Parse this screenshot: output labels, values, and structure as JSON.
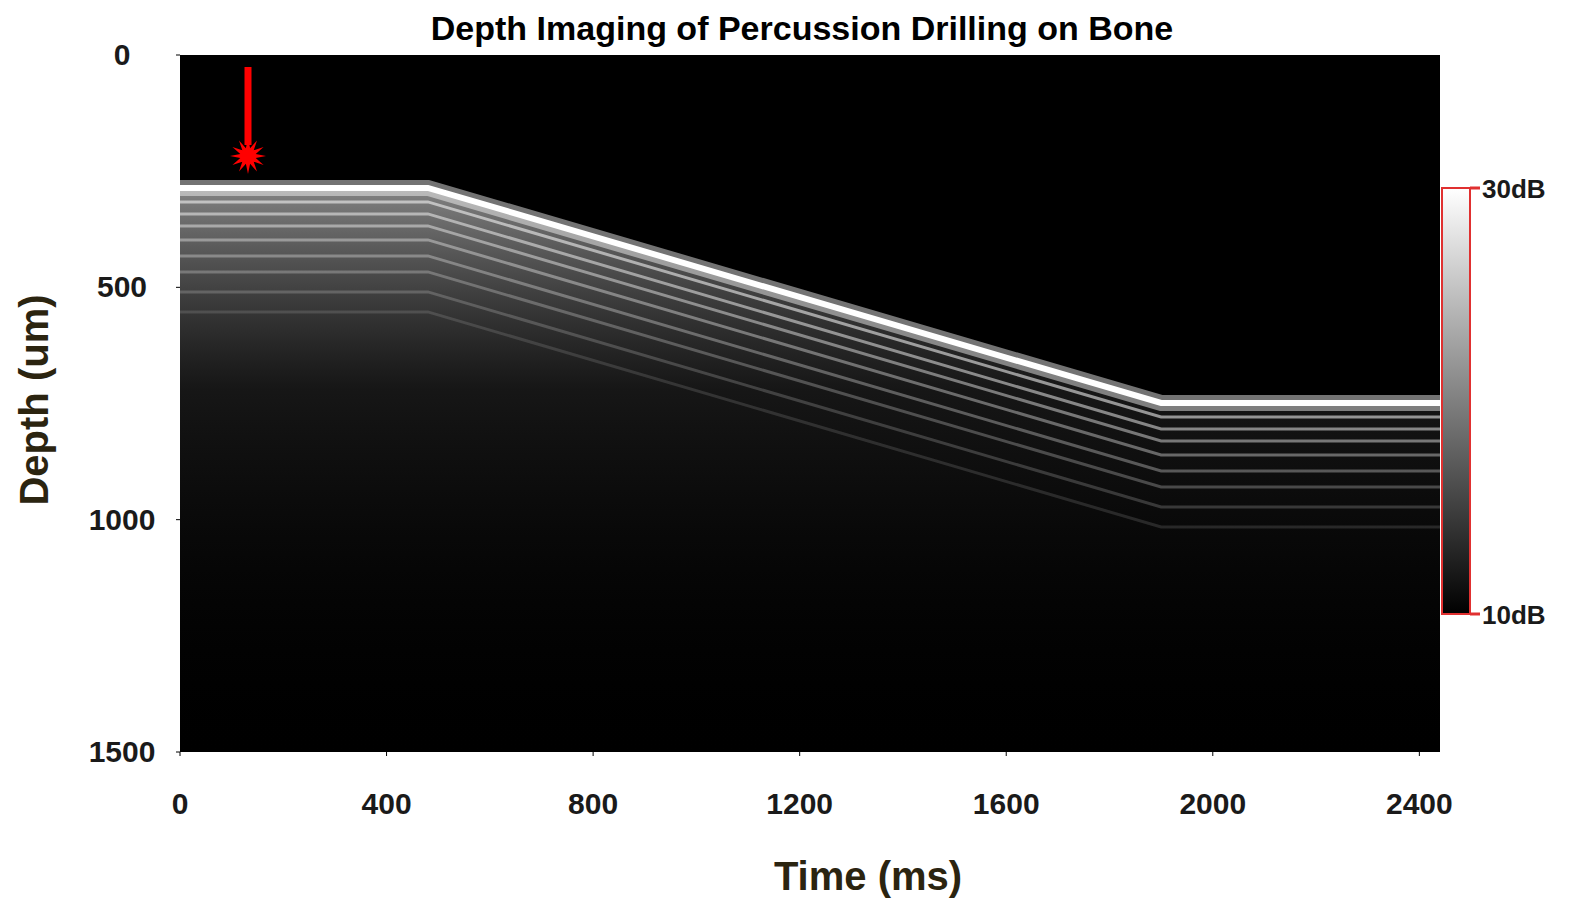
{
  "chart_data": {
    "type": "line",
    "title": "Depth Imaging of Percussion Drilling on Bone",
    "x_label": "Time (ms)",
    "y_label": "Depth (um)",
    "x": [
      0,
      480,
      1900,
      2440
    ],
    "values": [
      286,
      286,
      749,
      749
    ],
    "color": "#ffffff",
    "xlim": [
      0,
      2440
    ],
    "xticks": [
      0,
      400,
      800,
      1200,
      1600,
      2000,
      2400
    ],
    "ylim": [
      1500,
      0
    ],
    "yticks": [
      0,
      500,
      1000,
      1500
    ],
    "grid": false,
    "colorbar_range": [
      10,
      30
    ],
    "colorbar_ticks": [
      {
        "value": 30,
        "label": "30dB"
      },
      {
        "value": 10,
        "label": "10dB"
      }
    ]
  }
}
